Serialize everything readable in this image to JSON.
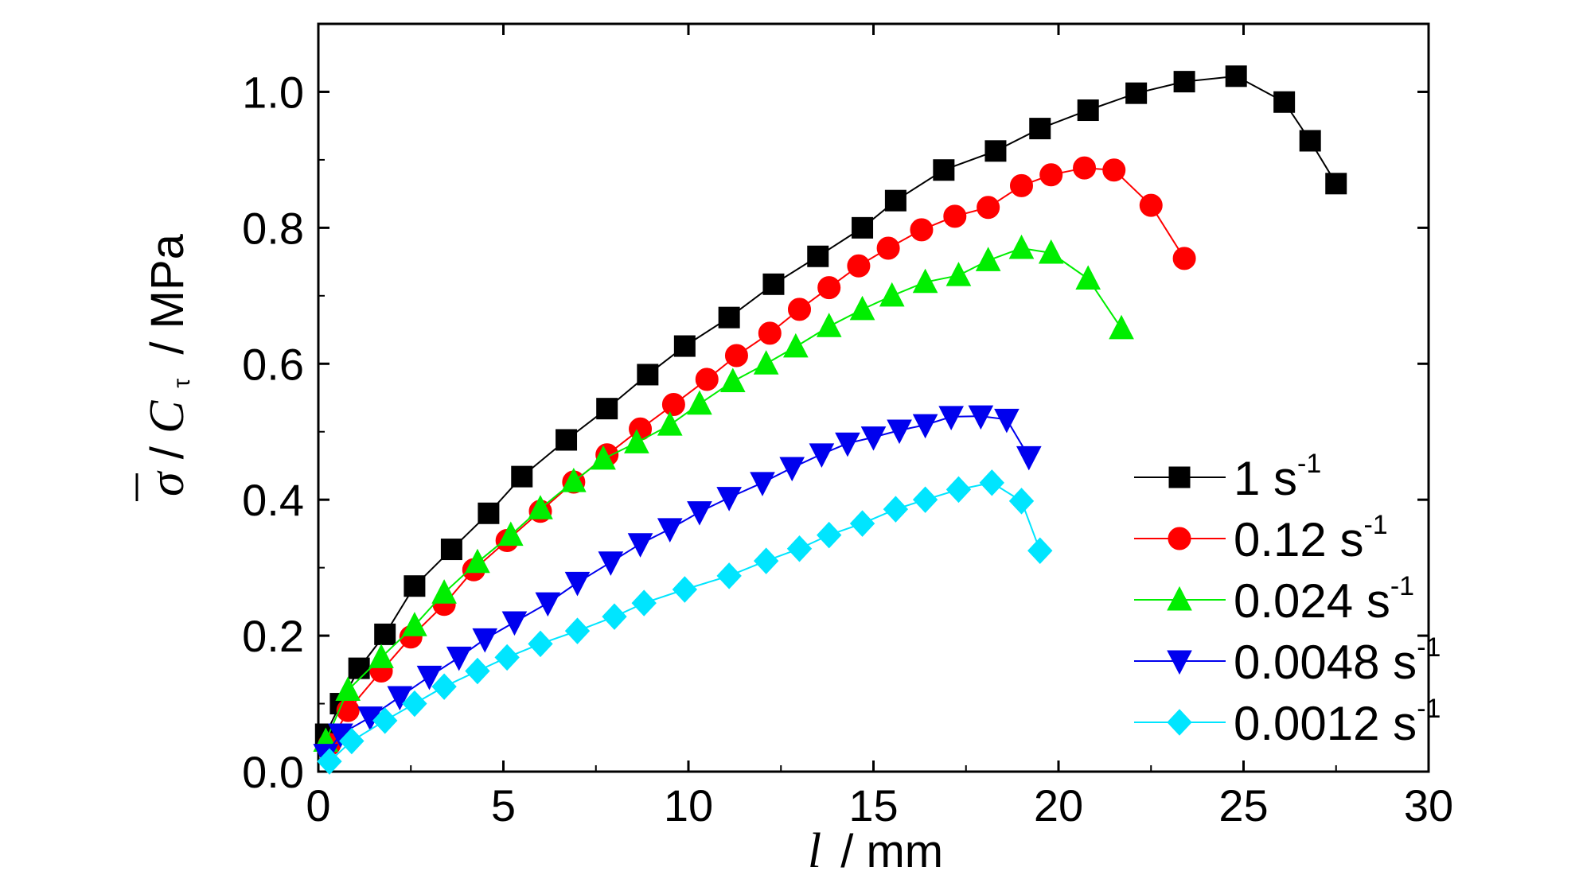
{
  "chart_data": {
    "type": "line",
    "xlabel": {
      "var": "l",
      "unit": "/ mm"
    },
    "ylabel": {
      "num": "σ",
      "den": "C",
      "sub": "τ",
      "unit": "/ MPa"
    },
    "xlim": [
      0,
      30
    ],
    "ylim": [
      0,
      1.1
    ],
    "xticks": [
      "0",
      "5",
      "10",
      "15",
      "20",
      "25",
      "30"
    ],
    "yticks": [
      "0.0",
      "0.2",
      "0.4",
      "0.6",
      "0.8",
      "1.0"
    ],
    "xtick_values": [
      0,
      5,
      10,
      15,
      20,
      25,
      30
    ],
    "ytick_values": [
      0,
      0.2,
      0.4,
      0.6,
      0.8,
      1.0
    ],
    "legend_position": "right",
    "series": [
      {
        "name": "1 s",
        "sup": "-1",
        "color": "#000000",
        "marker": "square",
        "x": [
          0.2,
          0.6,
          1.1,
          1.8,
          2.6,
          3.6,
          4.6,
          5.5,
          6.7,
          7.8,
          8.9,
          9.9,
          11.1,
          12.3,
          13.5,
          14.7,
          15.6,
          16.9,
          18.3,
          19.5,
          20.8,
          22.1,
          23.4,
          24.8,
          26.1,
          26.8,
          27.5
        ],
        "y": [
          0.055,
          0.1,
          0.152,
          0.202,
          0.273,
          0.327,
          0.38,
          0.434,
          0.488,
          0.534,
          0.584,
          0.626,
          0.668,
          0.717,
          0.758,
          0.8,
          0.84,
          0.885,
          0.913,
          0.946,
          0.973,
          0.998,
          1.015,
          1.023,
          0.985,
          0.928,
          0.865
        ]
      },
      {
        "name": "0.12 s",
        "sup": "-1",
        "color": "#ff0000",
        "marker": "circle",
        "x": [
          0.3,
          0.8,
          1.7,
          2.5,
          3.4,
          4.2,
          5.1,
          6.0,
          6.9,
          7.8,
          8.7,
          9.6,
          10.5,
          11.3,
          12.2,
          13.0,
          13.8,
          14.6,
          15.4,
          16.3,
          17.2,
          18.1,
          19.0,
          19.8,
          20.7,
          21.5,
          22.5,
          23.4
        ],
        "y": [
          0.04,
          0.09,
          0.148,
          0.198,
          0.246,
          0.297,
          0.34,
          0.383,
          0.426,
          0.466,
          0.504,
          0.54,
          0.577,
          0.612,
          0.645,
          0.68,
          0.712,
          0.744,
          0.77,
          0.797,
          0.817,
          0.83,
          0.862,
          0.878,
          0.888,
          0.885,
          0.833,
          0.755
        ]
      },
      {
        "name": "0.024 s",
        "sup": "-1",
        "color": "#00ee00",
        "marker": "triangle-up",
        "x": [
          0.2,
          0.8,
          1.7,
          2.6,
          3.4,
          4.3,
          5.2,
          6.0,
          6.9,
          7.7,
          8.6,
          9.5,
          10.3,
          11.2,
          12.1,
          12.9,
          13.8,
          14.7,
          15.5,
          16.4,
          17.3,
          18.1,
          19.0,
          19.8,
          20.8,
          21.7
        ],
        "y": [
          0.045,
          0.12,
          0.168,
          0.215,
          0.263,
          0.308,
          0.348,
          0.387,
          0.427,
          0.46,
          0.484,
          0.51,
          0.541,
          0.574,
          0.6,
          0.625,
          0.655,
          0.68,
          0.7,
          0.72,
          0.73,
          0.752,
          0.77,
          0.763,
          0.725,
          0.652
        ]
      },
      {
        "name": "0.0048 s",
        "sup": "-1",
        "color": "#0000ee",
        "marker": "triangle-down",
        "x": [
          0.2,
          0.6,
          1.4,
          2.2,
          3.0,
          3.8,
          4.5,
          5.3,
          6.2,
          7.0,
          7.9,
          8.7,
          9.5,
          10.3,
          11.1,
          12.0,
          12.8,
          13.6,
          14.3,
          15.0,
          15.7,
          16.4,
          17.1,
          17.9,
          18.6,
          19.2
        ],
        "y": [
          0.025,
          0.055,
          0.08,
          0.11,
          0.14,
          0.168,
          0.195,
          0.22,
          0.248,
          0.278,
          0.308,
          0.335,
          0.357,
          0.382,
          0.403,
          0.425,
          0.447,
          0.467,
          0.483,
          0.492,
          0.502,
          0.51,
          0.522,
          0.523,
          0.518,
          0.463
        ]
      },
      {
        "name": "0.0012 s",
        "sup": "-1",
        "color": "#00e5ff",
        "marker": "diamond",
        "x": [
          0.3,
          0.9,
          1.8,
          2.6,
          3.4,
          4.3,
          5.1,
          6.0,
          7.0,
          8.0,
          8.8,
          9.9,
          11.1,
          12.1,
          13.0,
          13.8,
          14.7,
          15.6,
          16.4,
          17.3,
          18.2,
          19.0,
          19.5
        ],
        "y": [
          0.015,
          0.045,
          0.075,
          0.1,
          0.125,
          0.148,
          0.168,
          0.188,
          0.207,
          0.228,
          0.248,
          0.268,
          0.288,
          0.31,
          0.328,
          0.348,
          0.365,
          0.386,
          0.4,
          0.415,
          0.425,
          0.398,
          0.325
        ]
      }
    ]
  }
}
